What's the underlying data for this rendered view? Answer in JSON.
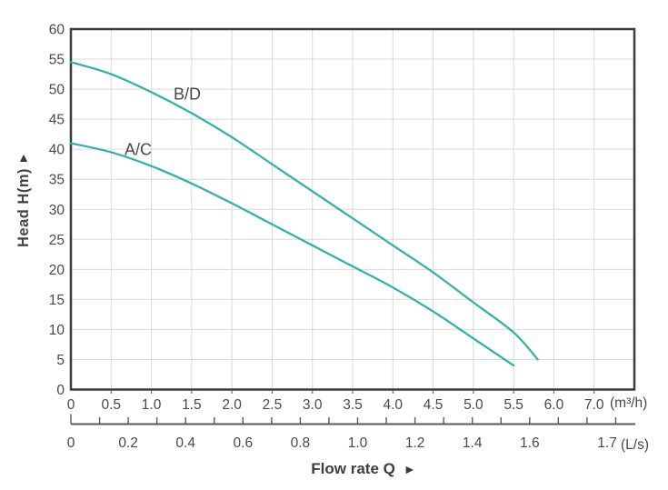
{
  "chart_data": {
    "type": "line",
    "title": "",
    "xlabel": "Flow rate Q",
    "ylabel": "Head H(m)",
    "x_axis_unit": "(m³/h)",
    "x2_axis_unit": "(L/s)",
    "xlim": [
      0,
      7
    ],
    "ylim": [
      0,
      60
    ],
    "grid": true,
    "legend_position": "inline-curve-labels",
    "x_tick_labels": [
      "0",
      "0.5",
      "1.0",
      "1.5",
      "2.0",
      "2.5",
      "3.0",
      "3.5",
      "4.0",
      "4.5",
      "5.0",
      "5.5",
      "6.0",
      "7.0"
    ],
    "y_tick_labels": [
      "0",
      "5",
      "10",
      "15",
      "20",
      "25",
      "30",
      "35",
      "40",
      "45",
      "50",
      "55",
      "60"
    ],
    "x2_tick_labels": [
      "0",
      "0.2",
      "0.4",
      "0.6",
      "0.8",
      "1.0",
      "1.2",
      "1.4",
      "1.6",
      "1.7"
    ],
    "series": [
      {
        "name": "B/D",
        "color": "#2bb3a8",
        "points": [
          [
            0,
            54.5
          ],
          [
            0.5,
            52.5
          ],
          [
            1.0,
            49.5
          ],
          [
            1.5,
            46
          ],
          [
            2.0,
            42
          ],
          [
            2.5,
            37.5
          ],
          [
            3.0,
            33
          ],
          [
            3.5,
            28.5
          ],
          [
            4.0,
            24
          ],
          [
            4.5,
            19.5
          ],
          [
            5.0,
            14.5
          ],
          [
            5.5,
            9.5
          ],
          [
            5.8,
            5
          ]
        ]
      },
      {
        "name": "A/C",
        "color": "#2bb3a8",
        "points": [
          [
            0,
            41
          ],
          [
            0.5,
            39.5
          ],
          [
            1.0,
            37.2
          ],
          [
            1.5,
            34.3
          ],
          [
            2.0,
            31
          ],
          [
            2.5,
            27.5
          ],
          [
            3.0,
            24
          ],
          [
            3.5,
            20.5
          ],
          [
            4.0,
            17
          ],
          [
            4.5,
            13
          ],
          [
            5.0,
            8.5
          ],
          [
            5.5,
            4
          ]
        ]
      }
    ],
    "annotations": {
      "y_axis_arrow": "▲",
      "x_axis_arrow": "►"
    }
  },
  "colors": {
    "grid": "#d9d9d9",
    "frame": "#3d3a38",
    "text": "#48484a",
    "ruler": "#58595b",
    "curve": "#2bb3a8"
  }
}
